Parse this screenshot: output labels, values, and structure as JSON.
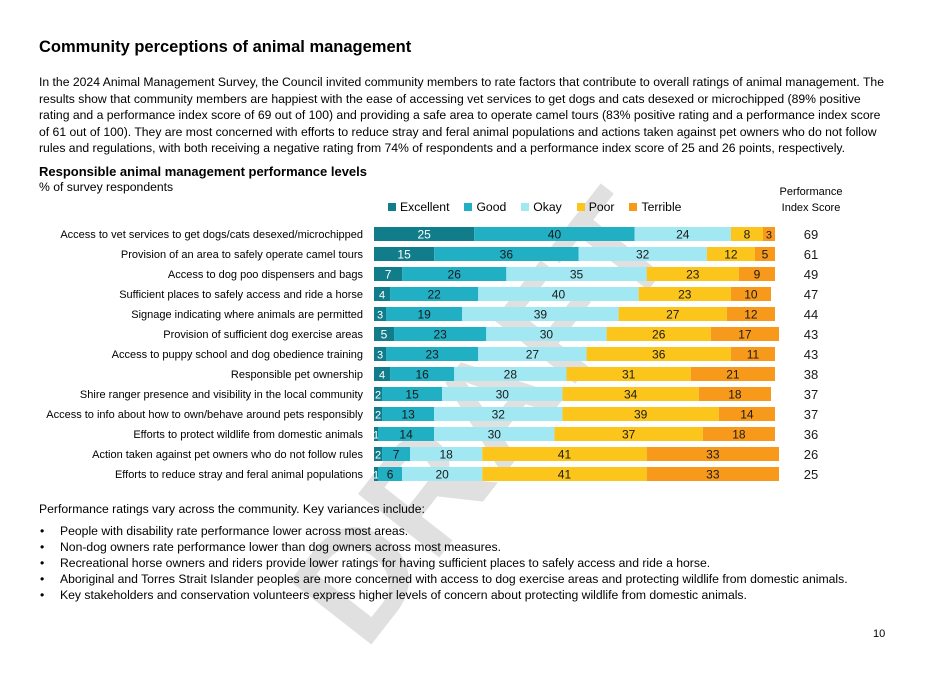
{
  "page": {
    "heading": "Community perceptions of animal management",
    "intro": "In the 2024 Animal Management Survey, the Council invited community members to rate factors that contribute to overall ratings of animal management. The results show that community members are happiest with the ease of accessing vet services to get dogs and cats desexed or microchipped (89% positive rating and a performance index score of 69 out of 100) and providing a safe area to operate camel tours (83% positive rating and a performance index score of 61 out of 100). They are most concerned with efforts to reduce stray and feral animal populations and actions taken against pet owners who do not follow rules and regulations, with both receiving a negative rating from 74% of respondents and a performance index score of 25 and 26 points, respectively.",
    "watermark": "DRAFT",
    "footer_text": "Performance ratings vary across the community. Key variances include:",
    "bullets": [
      "People with disability rate performance lower across most areas.",
      "Non-dog owners rate performance lower than dog owners across most measures.",
      "Recreational horse owners and riders provide lower ratings for having sufficient places to safely access and ride a horse.",
      "Aboriginal and Torres Strait Islander peoples are more concerned with access to dog exercise areas and protecting wildlife from domestic animals.",
      "Key stakeholders and conservation volunteers express higher levels of concern about protecting wildlife from domestic animals."
    ],
    "page_number": "10"
  },
  "chart_data": {
    "type": "bar",
    "orientation": "horizontal",
    "stacked": true,
    "title": "Responsible animal management performance levels",
    "subtitle": "% of survey respondents",
    "index_header": "Performance Index Score",
    "legend_placement": "top",
    "grid": false,
    "xlim": [
      0,
      100
    ],
    "categories": [
      "Access to vet services to get dogs/cats desexed/microchipped",
      "Provision of an area to safely operate camel tours",
      "Access to dog poo dispensers and bags",
      "Sufficient places to safely access and ride a horse",
      "Signage indicating where animals are permitted",
      "Provision of sufficient dog exercise areas",
      "Access to puppy school and dog obedience training",
      "Responsible pet ownership",
      "Shire ranger presence and visibility in the local community",
      "Access to info about how to own/behave around pets responsibly",
      "Efforts to protect wildlife from domestic animals",
      "Action taken against pet owners who do not follow rules",
      "Efforts to reduce stray and feral animal populations"
    ],
    "series": [
      {
        "name": "Excellent",
        "color": "#127d8a",
        "label_color": "#ffffff",
        "values": [
          25,
          15,
          7,
          4,
          3,
          5,
          3,
          4,
          2,
          2,
          1,
          2,
          1
        ]
      },
      {
        "name": "Good",
        "color": "#21afc4",
        "label_color": "#1a1a1a",
        "values": [
          40,
          36,
          26,
          22,
          19,
          23,
          23,
          16,
          15,
          13,
          14,
          7,
          6
        ]
      },
      {
        "name": "Okay",
        "color": "#a1e8f3",
        "label_color": "#1a1a1a",
        "values": [
          24,
          32,
          35,
          40,
          39,
          30,
          27,
          28,
          30,
          32,
          30,
          18,
          20
        ]
      },
      {
        "name": "Poor",
        "color": "#fcc51c",
        "label_color": "#1a1a1a",
        "values": [
          8,
          12,
          23,
          23,
          27,
          26,
          36,
          31,
          34,
          39,
          37,
          41,
          41
        ]
      },
      {
        "name": "Terrible",
        "color": "#f79a1b",
        "label_color": "#1a1a1a",
        "values": [
          3,
          5,
          9,
          10,
          12,
          17,
          11,
          21,
          18,
          14,
          18,
          33,
          33
        ]
      }
    ],
    "index_scores": [
      69,
      61,
      49,
      47,
      44,
      43,
      43,
      38,
      37,
      37,
      36,
      26,
      25
    ]
  }
}
